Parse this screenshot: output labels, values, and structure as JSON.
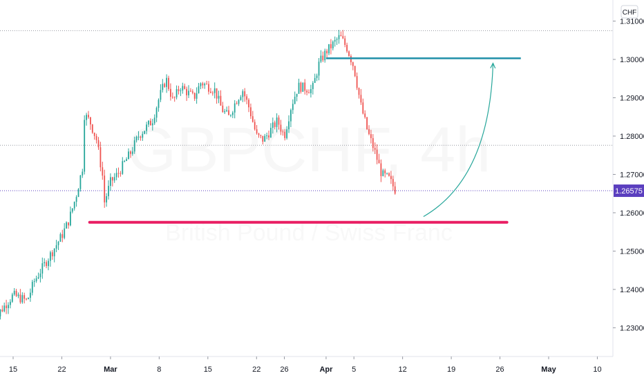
{
  "chart_data": {
    "type": "candlestick",
    "symbol_watermark": "GBPCHF, 4h",
    "subtitle_watermark": "British Pound / Swiss Franc",
    "currency_label": "CHF",
    "last_price_label": "1.26575",
    "last_price": 1.26575,
    "y_ticks": [
      "1.31000",
      "1.30000",
      "1.29000",
      "1.28000",
      "1.27000",
      "1.26000",
      "1.25000",
      "1.24000",
      "1.23000"
    ],
    "y_tick_values": [
      1.31,
      1.3,
      1.29,
      1.28,
      1.27,
      1.26,
      1.25,
      1.24,
      1.23
    ],
    "x_ticks": [
      {
        "label": "15",
        "date": "2021-02-15",
        "bold": false
      },
      {
        "label": "22",
        "date": "2021-02-22",
        "bold": false
      },
      {
        "label": "Mar",
        "date": "2021-03-01",
        "bold": true
      },
      {
        "label": "8",
        "date": "2021-03-08",
        "bold": false
      },
      {
        "label": "15",
        "date": "2021-03-15",
        "bold": false
      },
      {
        "label": "22",
        "date": "2021-03-22",
        "bold": false
      },
      {
        "label": "26",
        "date": "2021-03-26",
        "bold": false
      },
      {
        "label": "Apr",
        "date": "2021-04-01",
        "bold": true
      },
      {
        "label": "5",
        "date": "2021-04-05",
        "bold": false
      },
      {
        "label": "12",
        "date": "2021-04-12",
        "bold": false
      },
      {
        "label": "19",
        "date": "2021-04-19",
        "bold": false
      },
      {
        "label": "26",
        "date": "2021-04-26",
        "bold": false
      },
      {
        "label": "May",
        "date": "2021-05-03",
        "bold": true
      },
      {
        "label": "10",
        "date": "2021-05-10",
        "bold": false
      }
    ],
    "ylim": [
      1.2225,
      1.3155
    ],
    "dotted_levels": [
      1.3075,
      1.2776,
      1.26575
    ],
    "resistance_level": 1.3003,
    "support_level": 1.2575,
    "price_path": [
      [
        "2021-02-12",
        1.228
      ],
      [
        "2021-02-13",
        1.234
      ],
      [
        "2021-02-15",
        1.2385
      ],
      [
        "2021-02-17",
        1.237
      ],
      [
        "2021-02-18",
        1.242
      ],
      [
        "2021-02-20",
        1.248
      ],
      [
        "2021-02-22",
        1.254
      ],
      [
        "2021-02-23",
        1.258
      ],
      [
        "2021-02-24",
        1.264
      ],
      [
        "2021-02-25",
        1.272
      ],
      [
        "2021-02-25",
        1.286
      ],
      [
        "2021-02-26",
        1.284
      ],
      [
        "2021-02-27",
        1.279
      ],
      [
        "2021-02-28",
        1.268
      ],
      [
        "2021-02-28",
        1.262
      ],
      [
        "2021-03-01",
        1.268
      ],
      [
        "2021-03-02",
        1.27
      ],
      [
        "2021-03-04",
        1.276
      ],
      [
        "2021-03-05",
        1.28
      ],
      [
        "2021-03-07",
        1.284
      ],
      [
        "2021-03-08",
        1.29
      ],
      [
        "2021-03-09",
        1.295
      ],
      [
        "2021-03-10",
        1.289
      ],
      [
        "2021-03-11",
        1.293
      ],
      [
        "2021-03-13",
        1.29
      ],
      [
        "2021-03-14",
        1.294
      ],
      [
        "2021-03-16",
        1.292
      ],
      [
        "2021-03-17",
        1.287
      ],
      [
        "2021-03-18",
        1.285
      ],
      [
        "2021-03-19",
        1.289
      ],
      [
        "2021-03-20",
        1.292
      ],
      [
        "2021-03-21",
        1.287
      ],
      [
        "2021-03-22",
        1.28
      ],
      [
        "2021-03-23",
        1.279
      ],
      [
        "2021-03-25",
        1.284
      ],
      [
        "2021-03-26",
        1.28
      ],
      [
        "2021-03-27",
        1.288
      ],
      [
        "2021-03-28",
        1.293
      ],
      [
        "2021-03-30",
        1.292
      ],
      [
        "2021-03-31",
        1.299
      ],
      [
        "2021-04-01",
        1.302
      ],
      [
        "2021-04-02",
        1.304
      ],
      [
        "2021-04-03",
        1.306
      ],
      [
        "2021-04-04",
        1.303
      ],
      [
        "2021-04-05",
        1.298
      ],
      [
        "2021-04-06",
        1.288
      ],
      [
        "2021-04-07",
        1.281
      ],
      [
        "2021-04-08",
        1.276
      ],
      [
        "2021-04-09",
        1.27
      ],
      [
        "2021-04-10",
        1.269
      ],
      [
        "2021-04-11",
        1.26575
      ]
    ],
    "arrow_start": [
      "2021-04-15",
      1.259
    ],
    "arrow_end": [
      "2021-04-25",
      1.299
    ],
    "colors": {
      "up": "#26a69a",
      "down": "#ef5350",
      "resistance": "#1e8fa8",
      "support": "#e91e63",
      "arrow": "#26a69a",
      "last_price_bg": "#5b3fbf",
      "dotted": "#9598a1"
    }
  }
}
